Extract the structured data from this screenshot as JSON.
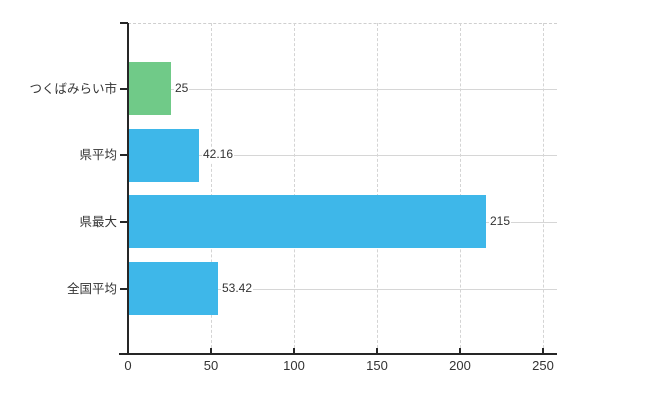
{
  "chart_data": {
    "type": "bar",
    "orientation": "horizontal",
    "title": "",
    "categories": [
      "つくばみらい市",
      "県平均",
      "県最大",
      "全国平均"
    ],
    "values": [
      25,
      42.16,
      215,
      53.42
    ],
    "value_labels": [
      "25",
      "42.16",
      "215",
      "53.42"
    ],
    "bar_colors": [
      "#70ca88",
      "#3eb7e9",
      "#3eb7e9",
      "#3eb7e9"
    ],
    "x_ticks": [
      "0",
      "50",
      "100",
      "150",
      "200",
      "250"
    ],
    "x_tick_values": [
      0,
      50,
      100,
      150,
      200,
      250
    ],
    "xlim": [
      0,
      258
    ],
    "grid": "on",
    "legend": "none",
    "background_color": "#ffffff",
    "axis_color": "#262626",
    "gridline_color": "#d6d6d6",
    "text_color": "#333333"
  }
}
